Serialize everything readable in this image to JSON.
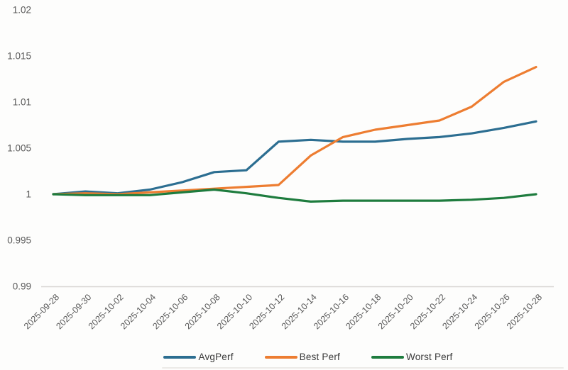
{
  "chart_data": {
    "type": "line",
    "x": [
      "2025-09-28",
      "2025-09-30",
      "2025-10-02",
      "2025-10-04",
      "2025-10-06",
      "2025-10-08",
      "2025-10-10",
      "2025-10-12",
      "2025-10-14",
      "2025-10-16",
      "2025-10-18",
      "2025-10-20",
      "2025-10-22",
      "2025-10-24",
      "2025-10-26",
      "2025-10-28"
    ],
    "series": [
      {
        "name": "AvgPerf",
        "color": "#2C6E91",
        "values": [
          1.0,
          1.0003,
          1.0001,
          1.0005,
          1.0013,
          1.0024,
          1.0026,
          1.0057,
          1.0059,
          1.0057,
          1.0057,
          1.006,
          1.0062,
          1.0066,
          1.0072,
          1.0079
        ]
      },
      {
        "name": "Best Perf",
        "color": "#ED7D31",
        "values": [
          1.0,
          1.0001,
          1.0,
          1.0002,
          1.0004,
          1.0006,
          1.0008,
          1.001,
          1.0042,
          1.0062,
          1.007,
          1.0075,
          1.008,
          1.0095,
          1.0122,
          1.0138
        ]
      },
      {
        "name": "Worst Perf",
        "color": "#1E7C3E",
        "values": [
          1.0,
          0.9999,
          0.9999,
          0.9999,
          1.0002,
          1.0005,
          1.0001,
          0.9996,
          0.9992,
          0.9993,
          0.9993,
          0.9993,
          0.9993,
          0.9994,
          0.9996,
          1.0
        ]
      }
    ],
    "yticks": [
      1.02,
      1.015,
      1.01,
      1.005,
      1,
      0.995,
      0.99
    ],
    "ytick_labels": [
      "1.02",
      "1.015",
      "1.01",
      "1.005",
      "1",
      "0.995",
      "0.99"
    ],
    "ylim": [
      0.99,
      1.02
    ],
    "title": "",
    "xlabel": "",
    "ylabel": "",
    "grid": false,
    "legend_position": "bottom",
    "styles": {
      "axis_line_color": "#d7d5d3",
      "tick_label_color": "#595959",
      "background": "#fdfdfc"
    }
  }
}
